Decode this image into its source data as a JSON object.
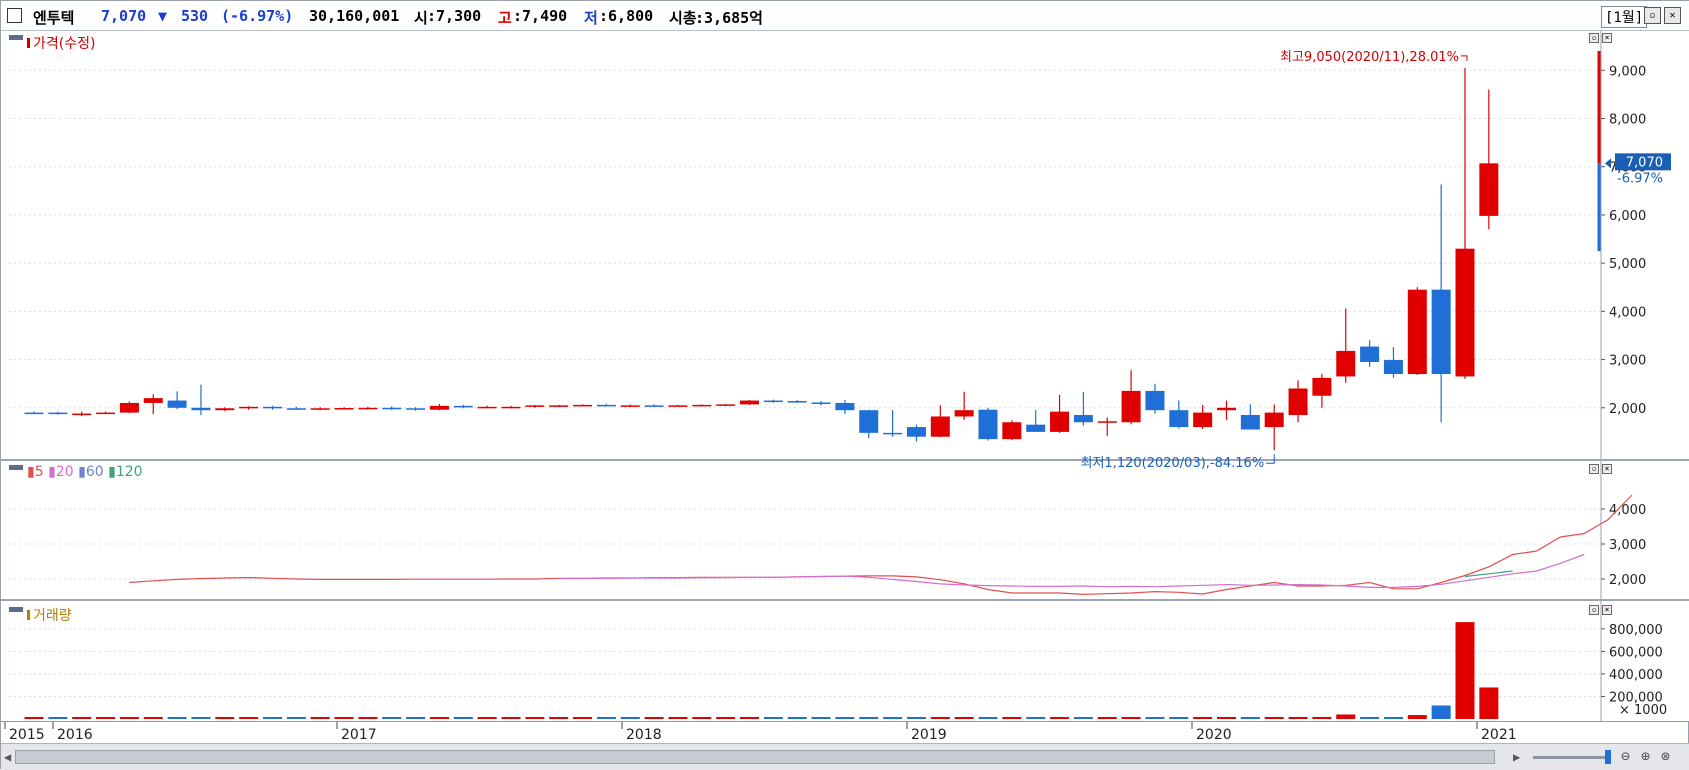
{
  "header": {
    "name": "엔투텍",
    "price": "7,070",
    "change_arrow": "▼",
    "change": "530",
    "change_pct": "(-6.97%)",
    "volume": "30,160,001",
    "open_label": "시",
    "open": ":7,300",
    "high_label": "고",
    "high": ":7,490",
    "low_label": "저",
    "low": ":6,800",
    "mcap_label": "시총",
    "mcap": ":3,685억",
    "period": "[1월]"
  },
  "colors": {
    "up": "#e00000",
    "down": "#1f6fd6",
    "ma5": "#e05050",
    "ma20": "#d070d0",
    "ma60": "#7080d0",
    "ma120": "#40a080",
    "volume_legend": "#b08000"
  },
  "price_pane": {
    "legend": "가격(수정)",
    "high_annotation": "최고9,050(2020/11),28.01%",
    "low_annotation": "최저1,120(2020/03),-84.16%",
    "current_price_tag": "7,070",
    "current_pct_tag": "-6.97%"
  },
  "ma_pane": {
    "legend": [
      "5",
      "20",
      "60",
      "120"
    ]
  },
  "volume_pane": {
    "legend": "거래량",
    "unit_label": "× 1000"
  },
  "chart_data": [
    {
      "type": "candlestick",
      "title": "가격(수정)",
      "x_axis_labels": [
        "2015",
        "2016",
        "2017",
        "2018",
        "2019",
        "2020",
        "2021"
      ],
      "y_ticks": [
        2000,
        3000,
        4000,
        5000,
        6000,
        7000,
        8000,
        9000
      ],
      "y_tick_labels": [
        "2,000",
        "3,000",
        "4,000",
        "5,000",
        "6,000",
        "7,000",
        "8,000",
        "9,000"
      ],
      "ylim": [
        1000,
        9400
      ],
      "grid": true,
      "candles": [
        {
          "date": "2015-12",
          "o": 1900,
          "h": 1920,
          "l": 1880,
          "c": 1890
        },
        {
          "date": "2016-01",
          "o": 1900,
          "h": 1920,
          "l": 1860,
          "c": 1870
        },
        {
          "date": "2016-02",
          "o": 1880,
          "h": 1920,
          "l": 1830,
          "c": 1880
        },
        {
          "date": "2016-03",
          "o": 1890,
          "h": 1920,
          "l": 1870,
          "c": 1900
        },
        {
          "date": "2016-04",
          "o": 1900,
          "h": 2130,
          "l": 1890,
          "c": 2100
        },
        {
          "date": "2016-05",
          "o": 2100,
          "h": 2280,
          "l": 1870,
          "c": 2200
        },
        {
          "date": "2016-06",
          "o": 2150,
          "h": 2340,
          "l": 1970,
          "c": 2000
        },
        {
          "date": "2016-07",
          "o": 2000,
          "h": 2480,
          "l": 1850,
          "c": 1950
        },
        {
          "date": "2016-08",
          "o": 1950,
          "h": 2010,
          "l": 1930,
          "c": 1990
        },
        {
          "date": "2016-09",
          "o": 1990,
          "h": 2030,
          "l": 1960,
          "c": 2020
        },
        {
          "date": "2016-10",
          "o": 2020,
          "h": 2040,
          "l": 1960,
          "c": 1990
        },
        {
          "date": "2016-11",
          "o": 1990,
          "h": 2020,
          "l": 1960,
          "c": 1985
        },
        {
          "date": "2016-12",
          "o": 1985,
          "h": 2010,
          "l": 1950,
          "c": 1990
        },
        {
          "date": "2017-01",
          "o": 1990,
          "h": 2010,
          "l": 1960,
          "c": 1995
        },
        {
          "date": "2017-02",
          "o": 1995,
          "h": 2020,
          "l": 1960,
          "c": 2000
        },
        {
          "date": "2017-03",
          "o": 2000,
          "h": 2030,
          "l": 1950,
          "c": 1990
        },
        {
          "date": "2017-04",
          "o": 1990,
          "h": 2010,
          "l": 1940,
          "c": 1960
        },
        {
          "date": "2017-05",
          "o": 1960,
          "h": 2080,
          "l": 1950,
          "c": 2040
        },
        {
          "date": "2017-06",
          "o": 2040,
          "h": 2060,
          "l": 1990,
          "c": 2010
        },
        {
          "date": "2017-07",
          "o": 2010,
          "h": 2040,
          "l": 1990,
          "c": 2020
        },
        {
          "date": "2017-08",
          "o": 2010,
          "h": 2040,
          "l": 1990,
          "c": 2020
        },
        {
          "date": "2017-09",
          "o": 2020,
          "h": 2060,
          "l": 2000,
          "c": 2050
        },
        {
          "date": "2017-10",
          "o": 2030,
          "h": 2060,
          "l": 2020,
          "c": 2050
        },
        {
          "date": "2017-11",
          "o": 2050,
          "h": 2070,
          "l": 2030,
          "c": 2060
        },
        {
          "date": "2017-12",
          "o": 2060,
          "h": 2080,
          "l": 2030,
          "c": 2050
        },
        {
          "date": "2018-01",
          "o": 2050,
          "h": 2070,
          "l": 2030,
          "c": 2050
        },
        {
          "date": "2018-02",
          "o": 2050,
          "h": 2070,
          "l": 2020,
          "c": 2030
        },
        {
          "date": "2018-03",
          "o": 2030,
          "h": 2060,
          "l": 2020,
          "c": 2050
        },
        {
          "date": "2018-04",
          "o": 2050,
          "h": 2070,
          "l": 2030,
          "c": 2060
        },
        {
          "date": "2018-05",
          "o": 2050,
          "h": 2080,
          "l": 2040,
          "c": 2070
        },
        {
          "date": "2018-06",
          "o": 2070,
          "h": 2160,
          "l": 2060,
          "c": 2150
        },
        {
          "date": "2018-07",
          "o": 2150,
          "h": 2170,
          "l": 2100,
          "c": 2120
        },
        {
          "date": "2018-08",
          "o": 2140,
          "h": 2160,
          "l": 2100,
          "c": 2110
        },
        {
          "date": "2018-09",
          "o": 2110,
          "h": 2140,
          "l": 2050,
          "c": 2080
        },
        {
          "date": "2018-10",
          "o": 2100,
          "h": 2160,
          "l": 1870,
          "c": 1950
        },
        {
          "date": "2018-11",
          "o": 1950,
          "h": 1960,
          "l": 1370,
          "c": 1480
        },
        {
          "date": "2018-12",
          "o": 1480,
          "h": 1950,
          "l": 1400,
          "c": 1460
        },
        {
          "date": "2019-01",
          "o": 1600,
          "h": 1650,
          "l": 1300,
          "c": 1400
        },
        {
          "date": "2019-02",
          "o": 1400,
          "h": 2050,
          "l": 1390,
          "c": 1820
        },
        {
          "date": "2019-03",
          "o": 1820,
          "h": 2330,
          "l": 1750,
          "c": 1950
        },
        {
          "date": "2019-04",
          "o": 1960,
          "h": 2000,
          "l": 1320,
          "c": 1350
        },
        {
          "date": "2019-05",
          "o": 1350,
          "h": 1740,
          "l": 1330,
          "c": 1700
        },
        {
          "date": "2019-06",
          "o": 1650,
          "h": 1950,
          "l": 1500,
          "c": 1500
        },
        {
          "date": "2019-07",
          "o": 1500,
          "h": 2270,
          "l": 1480,
          "c": 1920
        },
        {
          "date": "2019-08",
          "o": 1850,
          "h": 2330,
          "l": 1630,
          "c": 1700
        },
        {
          "date": "2019-09",
          "o": 1700,
          "h": 1800,
          "l": 1420,
          "c": 1720
        },
        {
          "date": "2019-10",
          "o": 1700,
          "h": 2780,
          "l": 1660,
          "c": 2350
        },
        {
          "date": "2019-11",
          "o": 2350,
          "h": 2500,
          "l": 1880,
          "c": 1950
        },
        {
          "date": "2019-12",
          "o": 1950,
          "h": 2150,
          "l": 1570,
          "c": 1600
        },
        {
          "date": "2020-01",
          "o": 1600,
          "h": 2060,
          "l": 1560,
          "c": 1900
        },
        {
          "date": "2020-02",
          "o": 1950,
          "h": 2150,
          "l": 1750,
          "c": 2000
        },
        {
          "date": "2020-03",
          "o": 1850,
          "h": 2070,
          "l": 1570,
          "c": 1550
        },
        {
          "date": "2020-04",
          "o": 1600,
          "h": 2070,
          "l": 1120,
          "c": 1900
        },
        {
          "date": "2020-05",
          "o": 1850,
          "h": 2570,
          "l": 1700,
          "c": 2400
        },
        {
          "date": "2020-06",
          "o": 2250,
          "h": 2700,
          "l": 2000,
          "c": 2620
        },
        {
          "date": "2020-07",
          "o": 2650,
          "h": 4060,
          "l": 2520,
          "c": 3180
        },
        {
          "date": "2020-08",
          "o": 3270,
          "h": 3400,
          "l": 2850,
          "c": 2950
        },
        {
          "date": "2020-09",
          "o": 2990,
          "h": 3260,
          "l": 2620,
          "c": 2700
        },
        {
          "date": "2020-10",
          "o": 2700,
          "h": 4500,
          "l": 2680,
          "c": 4450
        },
        {
          "date": "2020-11",
          "o": 4450,
          "h": 6630,
          "l": 1700,
          "c": 2700
        },
        {
          "date": "2020-12",
          "o": 2650,
          "h": 9050,
          "l": 2600,
          "c": 5300
        },
        {
          "date": "2021-01",
          "o": 5980,
          "h": 8600,
          "l": 5700,
          "c": 7070
        }
      ]
    },
    {
      "type": "line",
      "title": "5 20 60 120",
      "y_ticks": [
        2000,
        3000,
        4000
      ],
      "y_tick_labels": [
        "2,000",
        "3,000",
        "4,000"
      ],
      "ylim": [
        1600,
        4800
      ],
      "series": [
        {
          "name": "5",
          "start_index": 4,
          "values": [
            1900,
            1950,
            1990,
            2010,
            2030,
            2040,
            2020,
            2000,
            1990,
            1990,
            1990,
            1990,
            1995,
            1995,
            1995,
            1995,
            2000,
            2000,
            2020,
            2020,
            2030,
            2030,
            2040,
            2040,
            2050,
            2050,
            2050,
            2050,
            2060,
            2070,
            2080,
            2090,
            2090,
            2060,
            1980,
            1860,
            1700,
            1600,
            1600,
            1600,
            1560,
            1580,
            1600,
            1640,
            1620,
            1570,
            1700,
            1800,
            1900,
            1800,
            1800,
            1820,
            1900,
            1720,
            1720,
            1900,
            2100,
            2350,
            2700,
            2800,
            3200,
            3300,
            3700,
            4400
          ]
        },
        {
          "name": "20",
          "start_index": 22,
          "values": [
            2010,
            2015,
            2020,
            2025,
            2030,
            2030,
            2035,
            2040,
            2045,
            2050,
            2060,
            2070,
            2080,
            2050,
            1990,
            1930,
            1860,
            1830,
            1810,
            1800,
            1790,
            1790,
            1800,
            1780,
            1790,
            1780,
            1800,
            1820,
            1840,
            1820,
            1830,
            1840,
            1830,
            1800,
            1760,
            1760,
            1790,
            1850,
            1950,
            2050,
            2150,
            2230,
            2450,
            2700
          ]
        },
        {
          "name": "60",
          "start_index": 60,
          "values": [
            2070,
            2150,
            2230
          ]
        }
      ]
    },
    {
      "type": "bar",
      "title": "거래량",
      "y_ticks": [
        200000,
        400000,
        600000,
        800000
      ],
      "y_tick_labels": [
        "200,000",
        "400,000",
        "600,000",
        "800,000"
      ],
      "ylim": [
        0,
        870000
      ],
      "volumes": [
        4000,
        3000,
        2000,
        3000,
        5000,
        4000,
        3000,
        4000,
        3000,
        3000,
        3000,
        3000,
        3000,
        2000,
        2000,
        3000,
        2000,
        3000,
        3000,
        2000,
        2000,
        3000,
        3000,
        2000,
        2000,
        2000,
        2000,
        2000,
        3000,
        2000,
        3000,
        3000,
        2000,
        3000,
        3000,
        4000,
        3000,
        3000,
        3000,
        4000,
        3000,
        3000,
        4000,
        4000,
        4000,
        4000,
        6000,
        4000,
        3000,
        4000,
        3000,
        3000,
        4000,
        6000,
        5000,
        40000,
        12000,
        12000,
        35000,
        120000,
        860000,
        280000
      ],
      "volume_up": [
        true,
        false,
        true,
        true,
        true,
        true,
        false,
        false,
        true,
        true,
        false,
        false,
        true,
        true,
        true,
        false,
        false,
        true,
        false,
        true,
        true,
        true,
        true,
        true,
        false,
        false,
        true,
        true,
        true,
        true,
        true,
        false,
        false,
        false,
        false,
        false,
        false,
        false,
        true,
        true,
        false,
        true,
        false,
        true,
        false,
        true,
        true,
        false,
        false,
        true,
        true,
        false,
        true,
        true,
        true,
        true,
        false,
        false,
        true,
        false,
        true,
        true
      ]
    }
  ]
}
